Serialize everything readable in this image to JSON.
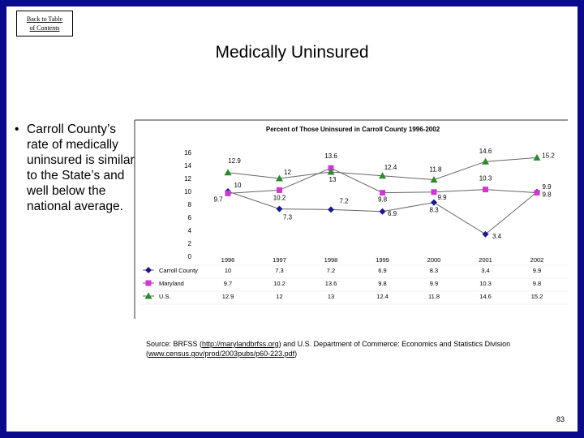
{
  "nav": {
    "back_link_line1": "Back to Table",
    "back_link_line2": "of Contents"
  },
  "slide": {
    "title": "Medically Uninsured",
    "bullet": "Carroll County’s rate of medically uninsured is similar to the State’s and well below the national average.",
    "source_prefix": "Source: BRFSS (",
    "source_link1": "http://marylandbrfss.org",
    "source_middle": ") and U.S. Department of Commerce: Economics and Statistics Division (",
    "source_link2": "www.census.gov/prod/2003pubs/p60-223.pdf",
    "source_suffix": ")",
    "page_number": "83"
  },
  "chart_data": {
    "type": "line",
    "title": "Percent of Those Uninsured in Carroll County 1996-2002",
    "categories": [
      "1996",
      "1997",
      "1998",
      "1999",
      "2000",
      "2001",
      "2002"
    ],
    "ylim": [
      0,
      16
    ],
    "yticks": [
      "0",
      "2",
      "4",
      "6",
      "8",
      "10",
      "12",
      "14",
      "16"
    ],
    "series": [
      {
        "name": "Carroll County",
        "marker": "diamond",
        "color": "#1a1a8c",
        "values": [
          10,
          7.3,
          7.2,
          6.9,
          8.3,
          3.4,
          9.9
        ],
        "labels": [
          "10",
          "7.3",
          "7.2",
          "6.9",
          "8.3",
          "3.4",
          "9.9"
        ]
      },
      {
        "name": "Maryland",
        "marker": "square",
        "color": "#d633d6",
        "values": [
          9.7,
          10.2,
          13.6,
          9.8,
          9.9,
          10.3,
          9.8
        ],
        "labels": [
          "9.7",
          "10.2",
          "13.6",
          "9.8",
          "9.9",
          "10.3",
          "9.8"
        ]
      },
      {
        "name": "U.S.",
        "marker": "triangle",
        "color": "#2a8a2a",
        "values": [
          12.9,
          12,
          13,
          12.4,
          11.8,
          14.6,
          15.2
        ],
        "labels": [
          "12.9",
          "12",
          "13",
          "12.4",
          "11.8",
          "14.6",
          "15.2"
        ]
      }
    ]
  }
}
